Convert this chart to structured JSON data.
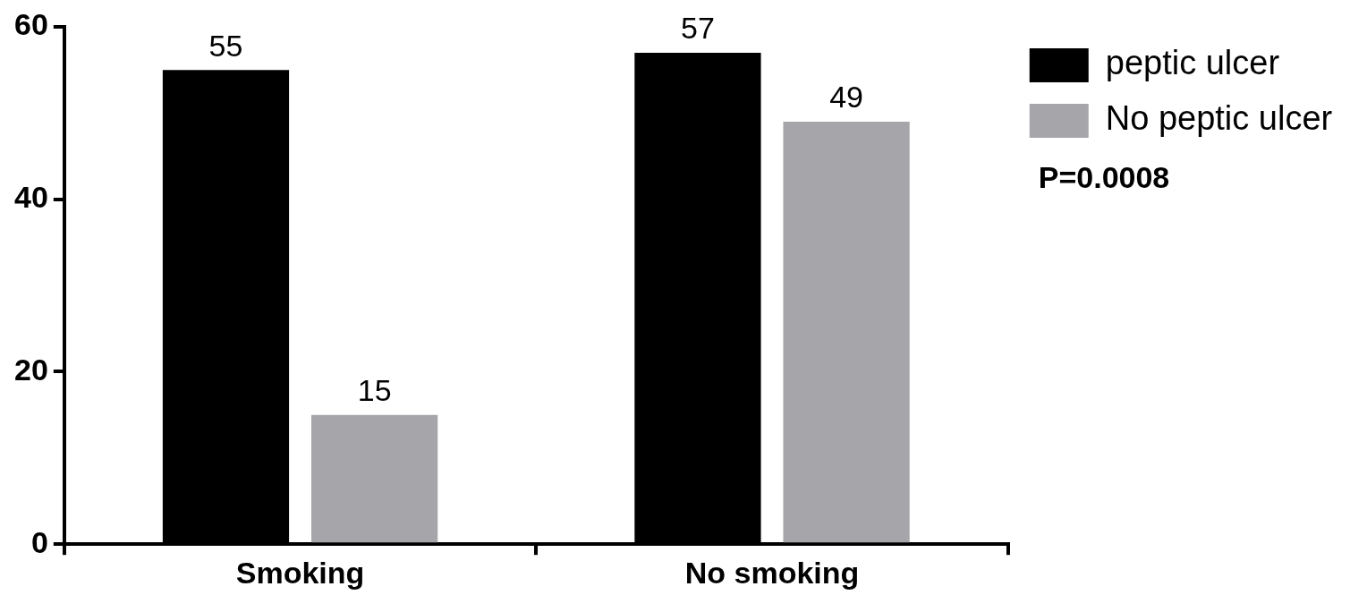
{
  "chart_data": {
    "type": "bar",
    "categories": [
      "Smoking",
      "No smoking"
    ],
    "series": [
      {
        "name": "peptic ulcer",
        "color": "#000000",
        "values": [
          55,
          57
        ]
      },
      {
        "name": "No peptic ulcer",
        "color": "#a6a5aa",
        "values": [
          15,
          49
        ]
      }
    ],
    "ylim": [
      0,
      60
    ],
    "yticks": [
      0,
      20,
      40,
      60
    ],
    "grid": false,
    "legend": "top right",
    "data_labels": true,
    "annotations": [
      "P=0.0008"
    ]
  }
}
